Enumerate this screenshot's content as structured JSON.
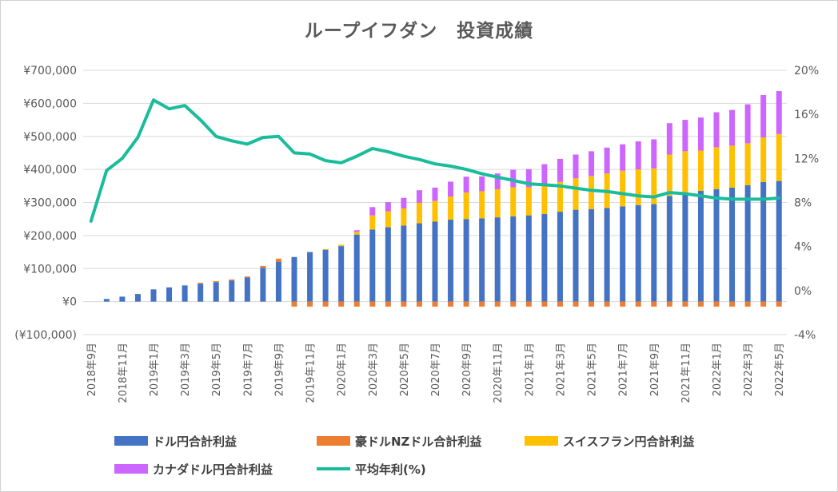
{
  "chart_data": {
    "type": "bar",
    "subtype": "stacked-bar-with-line",
    "title": "ループイフダン　投資成績",
    "categories": [
      "2018年9月",
      "2018年10月",
      "2018年11月",
      "2018年12月",
      "2019年1月",
      "2019年2月",
      "2019年3月",
      "2019年4月",
      "2019年5月",
      "2019年6月",
      "2019年7月",
      "2019年8月",
      "2019年9月",
      "2019年10月",
      "2019年11月",
      "2019年12月",
      "2020年1月",
      "2020年2月",
      "2020年3月",
      "2020年4月",
      "2020年5月",
      "2020年6月",
      "2020年7月",
      "2020年8月",
      "2020年9月",
      "2020年10月",
      "2020年11月",
      "2020年12月",
      "2021年1月",
      "2021年2月",
      "2021年3月",
      "2021年4月",
      "2021年5月",
      "2021年6月",
      "2021年7月",
      "2021年8月",
      "2021年9月",
      "2021年10月",
      "2021年11月",
      "2021年12月",
      "2022年1月",
      "2022年2月",
      "2022年3月",
      "2022年4月",
      "2022年5月"
    ],
    "x_tick_labels": [
      "2018年9月",
      "",
      "2018年11月",
      "",
      "2019年1月",
      "",
      "2019年3月",
      "",
      "2019年5月",
      "",
      "2019年7月",
      "",
      "2019年9月",
      "",
      "2019年11月",
      "",
      "2020年1月",
      "",
      "2020年3月",
      "",
      "2020年5月",
      "",
      "2020年7月",
      "",
      "2020年9月",
      "",
      "2020年11月",
      "",
      "2021年1月",
      "",
      "2021年3月",
      "",
      "2021年5月",
      "",
      "2021年7月",
      "",
      "2021年9月",
      "",
      "2021年11月",
      "",
      "2022年1月",
      "",
      "2022年3月",
      "",
      "2022年5月"
    ],
    "y_left": {
      "min": -100000,
      "max": 700000,
      "step": 100000,
      "tick_labels": [
        "(¥100,000)",
        "¥0",
        "¥100,000",
        "¥200,000",
        "¥300,000",
        "¥400,000",
        "¥500,000",
        "¥600,000",
        "¥700,000"
      ]
    },
    "y_right": {
      "min": -4,
      "max": 20,
      "step": 4,
      "tick_labels": [
        "-4%",
        "0%",
        "4%",
        "8%",
        "12%",
        "16%",
        "20%"
      ]
    },
    "series": [
      {
        "name": "ドル円合計利益",
        "color": "#4472C4",
        "axis": "left",
        "kind": "bar",
        "values": [
          0,
          8000,
          15000,
          23000,
          37000,
          43000,
          49000,
          54000,
          59000,
          64000,
          73000,
          102000,
          120000,
          135000,
          150000,
          157000,
          168000,
          203000,
          218000,
          225000,
          230000,
          237000,
          242000,
          248000,
          250000,
          252000,
          255000,
          258000,
          261000,
          265000,
          272000,
          278000,
          280000,
          283000,
          288000,
          292000,
          295000,
          320000,
          330000,
          335000,
          340000,
          345000,
          352000,
          362000,
          365000
        ]
      },
      {
        "name": "豪ドルNZドル合計利益",
        "color": "#ED7D31",
        "axis": "left",
        "kind": "bar",
        "values": [
          0,
          0,
          0,
          0,
          0,
          0,
          0,
          3000,
          3000,
          3000,
          3000,
          6000,
          10000,
          -15000,
          -15000,
          -15000,
          -15000,
          -15000,
          -15000,
          -15000,
          -15000,
          -15000,
          -15000,
          -15000,
          -15000,
          -15000,
          -15000,
          -15000,
          -15000,
          -15000,
          -15000,
          -15000,
          -15000,
          -15000,
          -15000,
          -15000,
          -15000,
          -15000,
          -15000,
          -15000,
          -15000,
          -15000,
          -15000,
          -15000,
          -15000
        ]
      },
      {
        "name": "スイスフラン円合計利益",
        "color": "#FFC000",
        "axis": "left",
        "kind": "bar",
        "values": [
          0,
          0,
          0,
          0,
          0,
          0,
          0,
          0,
          0,
          0,
          0,
          0,
          0,
          0,
          0,
          2000,
          4000,
          8000,
          43000,
          48000,
          52000,
          62000,
          63000,
          70000,
          80000,
          82000,
          85000,
          88000,
          85000,
          88000,
          90000,
          95000,
          100000,
          105000,
          108000,
          108000,
          108000,
          125000,
          125000,
          122000,
          127000,
          127000,
          127000,
          135000,
          142000
        ]
      },
      {
        "name": "カナダドル円合計利益",
        "color": "#CC66FF",
        "axis": "left",
        "kind": "bar",
        "values": [
          0,
          0,
          0,
          0,
          0,
          0,
          0,
          0,
          0,
          0,
          0,
          0,
          0,
          0,
          0,
          0,
          0,
          5000,
          25000,
          28000,
          32000,
          38000,
          40000,
          45000,
          48000,
          45000,
          48000,
          53000,
          55000,
          63000,
          70000,
          72000,
          75000,
          78000,
          80000,
          85000,
          88000,
          95000,
          95000,
          100000,
          106000,
          108000,
          118000,
          128000,
          130000
        ]
      },
      {
        "name": "平均年利(%)",
        "color": "#1ABC9C",
        "axis": "right",
        "kind": "line",
        "values": [
          6.3,
          10.9,
          12.0,
          13.9,
          17.3,
          16.5,
          16.8,
          15.5,
          14.0,
          13.6,
          13.3,
          13.9,
          14.0,
          12.5,
          12.4,
          11.8,
          11.6,
          12.2,
          12.9,
          12.6,
          12.2,
          11.9,
          11.5,
          11.3,
          11.0,
          10.6,
          10.3,
          10.0,
          9.7,
          9.6,
          9.5,
          9.3,
          9.1,
          9.0,
          8.8,
          8.6,
          8.5,
          8.9,
          8.8,
          8.6,
          8.4,
          8.3,
          8.3,
          8.3,
          8.4
        ]
      }
    ],
    "legend_position": "bottom",
    "grid": {
      "horizontal": true,
      "vertical": false
    }
  }
}
